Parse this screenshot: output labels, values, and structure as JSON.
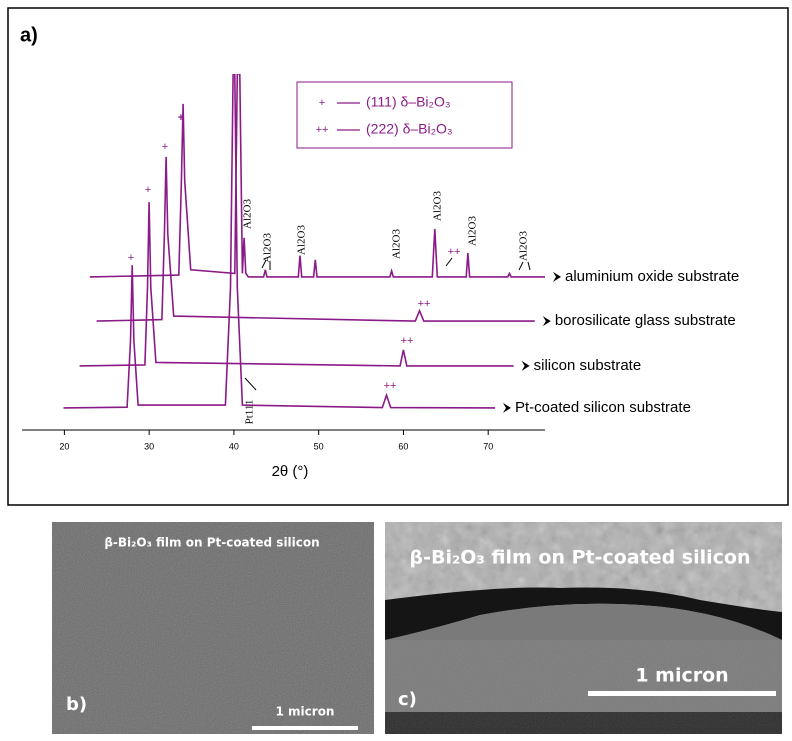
{
  "chart_data": {
    "type": "line",
    "panel": "a)",
    "x_label": "2θ (°)",
    "xlim": [
      15,
      76.7
    ],
    "xticks": [
      20,
      30,
      40,
      50,
      60,
      70
    ],
    "ylim": [
      0,
      100
    ],
    "color": "#8b1a89",
    "series": [
      {
        "name": "aluminium oxide substrate",
        "color": "#8b1a89",
        "x": [
          23,
          33.5,
          33.8,
          34.0,
          34.2,
          34.9,
          40.1,
          40.4,
          40.7,
          41.0,
          41.2,
          41.4,
          41.7,
          43.5,
          43.7,
          43.9,
          47.6,
          47.8,
          48.0,
          49.4,
          49.6,
          49.8,
          58.4,
          58.6,
          58.8,
          63.4,
          63.7,
          64.0,
          67.4,
          67.6,
          67.8,
          72.3,
          72.5,
          72.7,
          76.7
        ],
        "values": [
          43,
          43.5,
          70,
          91.6,
          70,
          45,
          44,
          100,
          100,
          44,
          54,
          44,
          43,
          43,
          45,
          43,
          43,
          49,
          43,
          43,
          47.8,
          43,
          43,
          44.7,
          43,
          43,
          56.5,
          43,
          43,
          49.7,
          43,
          43,
          44,
          43,
          43
        ]
      },
      {
        "name": "borosilicate glass substrate",
        "color": "#8b1a89",
        "x": [
          23.8,
          31.5,
          31.8,
          32.0,
          32.2,
          32.9,
          61.4,
          61.9,
          62.4,
          75.5
        ],
        "values": [
          30.6,
          31,
          55,
          76.7,
          55,
          32,
          30.6,
          33.5,
          30.6,
          30.6
        ]
      },
      {
        "name": "silicon substrate",
        "color": "#8b1a89",
        "x": [
          21.8,
          29.5,
          29.8,
          30.0,
          30.2,
          30.8,
          59.6,
          60.0,
          60.4,
          73
        ],
        "values": [
          18,
          18.3,
          40,
          64,
          40,
          19,
          18,
          22.5,
          18,
          18
        ]
      },
      {
        "name": "Pt-coated silicon substrate",
        "color": "#8b1a89",
        "x": [
          19.9,
          27.4,
          27.8,
          28.0,
          28.2,
          28.7,
          39.0,
          39.6,
          39.9,
          40.1,
          40.4,
          41.0,
          57.5,
          58.0,
          58.5,
          70.8
        ],
        "values": [
          6.2,
          6.4,
          25,
          46.3,
          25,
          7,
          7,
          40,
          100,
          100,
          40,
          7,
          6.3,
          9.8,
          6.3,
          6.2
        ]
      }
    ],
    "legend": [
      {
        "symbol": "+",
        "label": "(111) δ–Bi₂O₃"
      },
      {
        "symbol": "++",
        "label": "(222) δ–Bi₂O₃"
      }
    ],
    "annotations": [
      "+",
      "+",
      "+",
      "+",
      "++",
      "++",
      "++",
      "++",
      "Al2O3",
      "Al2O3",
      "Al2O3",
      "Al2O3",
      "Al2O3",
      "Al2O3",
      "Al2O3",
      "Pt111"
    ]
  },
  "images": [
    {
      "caption": "β-Bi₂O₃ film on Pt-coated silicon",
      "panel": "b)",
      "scale_label": "1 micron"
    },
    {
      "caption": "β-Bi₂O₃ film on Pt-coated silicon",
      "panel": "c)",
      "scale_label": "1 micron"
    }
  ]
}
